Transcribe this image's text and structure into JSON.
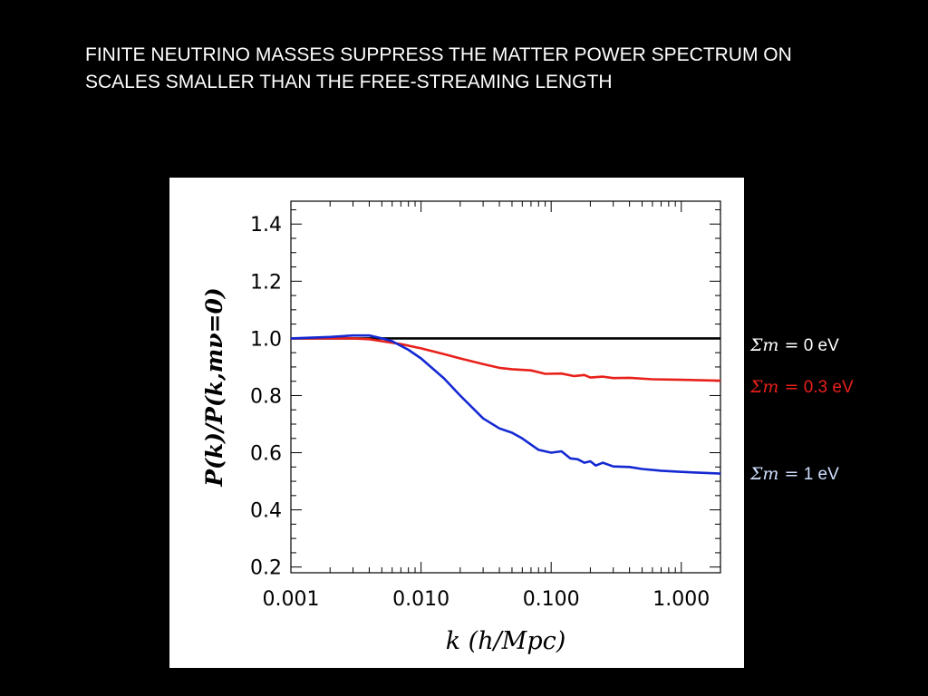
{
  "slide": {
    "title": "FINITE NEUTRINO MASSES SUPPRESS THE MATTER POWER SPECTRUM ON SCALES SMALLER THAN THE FREE-STREAMING LENGTH"
  },
  "chart_data": {
    "type": "line",
    "xscale": "log",
    "xlim": [
      0.001,
      2.0
    ],
    "ylim": [
      0.18,
      1.48
    ],
    "xlabel": "k (h/Mpc)",
    "ylabel": "P(k)/P(k,mν=0)",
    "x_ticks": [
      "0.001",
      "0.010",
      "0.100",
      "1.000"
    ],
    "y_ticks": [
      "0.2",
      "0.4",
      "0.6",
      "0.8",
      "1.0",
      "1.2",
      "1.4"
    ],
    "series": [
      {
        "name": "Σm = 0  eV",
        "label_prefix": "Σm =",
        "label_value": "0  eV",
        "color": "#000000",
        "x": [
          0.001,
          2.0
        ],
        "y": [
          1.0,
          1.0
        ]
      },
      {
        "name": "Σm = 0.3 eV",
        "label_prefix": "Σm =",
        "label_value": "0.3 eV",
        "color": "#e8201a",
        "x": [
          0.001,
          0.002,
          0.003,
          0.004,
          0.005,
          0.007,
          0.01,
          0.015,
          0.02,
          0.03,
          0.04,
          0.05,
          0.07,
          0.09,
          0.12,
          0.15,
          0.18,
          0.2,
          0.25,
          0.3,
          0.4,
          0.6,
          1.0,
          2.0
        ],
        "y": [
          1.0,
          1.0,
          1.0,
          0.997,
          0.99,
          0.98,
          0.965,
          0.945,
          0.93,
          0.91,
          0.897,
          0.892,
          0.888,
          0.876,
          0.877,
          0.868,
          0.872,
          0.863,
          0.866,
          0.861,
          0.862,
          0.857,
          0.855,
          0.852
        ]
      },
      {
        "name": "Σm = 1 eV",
        "label_prefix": "Σm =",
        "label_value": "1 eV",
        "color": "#1428d2",
        "x": [
          0.001,
          0.002,
          0.003,
          0.004,
          0.005,
          0.006,
          0.008,
          0.01,
          0.015,
          0.02,
          0.03,
          0.04,
          0.05,
          0.06,
          0.08,
          0.1,
          0.12,
          0.14,
          0.16,
          0.18,
          0.2,
          0.22,
          0.25,
          0.3,
          0.4,
          0.5,
          0.7,
          1.0,
          2.0
        ],
        "y": [
          1.0,
          1.005,
          1.01,
          1.01,
          1.0,
          0.99,
          0.96,
          0.93,
          0.86,
          0.8,
          0.72,
          0.685,
          0.67,
          0.65,
          0.61,
          0.6,
          0.605,
          0.58,
          0.577,
          0.565,
          0.57,
          0.555,
          0.565,
          0.552,
          0.55,
          0.543,
          0.537,
          0.533,
          0.527
        ]
      }
    ]
  }
}
